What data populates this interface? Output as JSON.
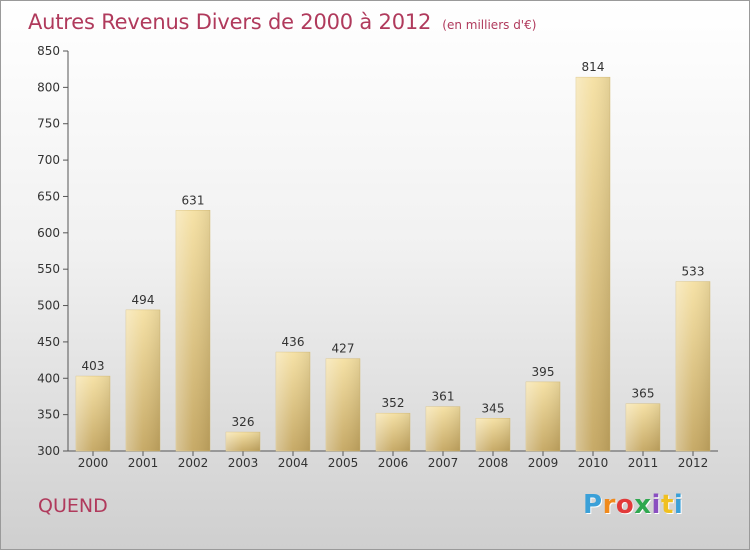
{
  "header": {
    "title": "Autres Revenus Divers de 2000 à 2012",
    "subtitle": "(en milliers d'€)"
  },
  "footer": {
    "commune": "QUEND",
    "brand": "Proxiti",
    "brand_colors": [
      "#3aa0d8",
      "#f08a1c",
      "#e23a3a",
      "#2fa84f",
      "#8a4fc0",
      "#f0c020",
      "#3aa0d8"
    ]
  },
  "chart_data": {
    "type": "bar",
    "categories": [
      "2000",
      "2001",
      "2002",
      "2003",
      "2004",
      "2005",
      "2006",
      "2007",
      "2008",
      "2009",
      "2010",
      "2011",
      "2012"
    ],
    "values": [
      403,
      494,
      631,
      326,
      436,
      427,
      352,
      361,
      345,
      395,
      814,
      365,
      533
    ],
    "ylim": [
      300,
      850
    ],
    "yticks": [
      300,
      350,
      400,
      450,
      500,
      550,
      600,
      650,
      700,
      750,
      800,
      850
    ],
    "grid": false,
    "bar_color": "#e6cc85",
    "text_color": "#b03a5c"
  }
}
